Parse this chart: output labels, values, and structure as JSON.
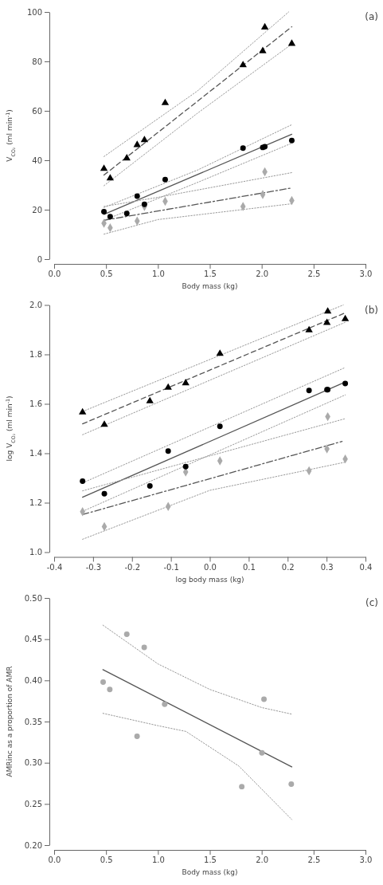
{
  "chart_data": [
    {
      "type": "scatter",
      "title": "(a)",
      "xlabel": "Body mass (kg)",
      "ylabel": "V$_{CO₂}$ (ml min$^{-1}$)",
      "xlim": [
        0,
        3
      ],
      "xticks": [
        {
          "value": 0,
          "label": "0.0"
        },
        {
          "value": 0.5,
          "label": "0.5"
        },
        {
          "value": 1,
          "label": "1.0"
        },
        {
          "value": 1.5,
          "label": "1.5"
        },
        {
          "value": 2,
          "label": "2.0"
        },
        {
          "value": 2.5,
          "label": "2.5"
        },
        {
          "value": 3,
          "label": "3.0"
        }
      ],
      "ylim": [
        0,
        100
      ],
      "yticks": [
        0,
        20,
        40,
        60,
        80,
        100
      ],
      "series": [
        {
          "type": "line",
          "color": "#999999",
          "line_style": "dotted",
          "x": [
            0.48,
            1.38,
            2.26
          ],
          "values": [
            41.5,
            68,
            100
          ]
        },
        {
          "type": "line",
          "color": "#999999",
          "line_style": "dotted",
          "x": [
            0.48,
            1.38,
            2.29
          ],
          "values": [
            29.7,
            59,
            87
          ]
        },
        {
          "type": "line",
          "color": "#555555",
          "line_style": "dashed",
          "x": [
            0.48,
            2.29
          ],
          "values": [
            34,
            94
          ]
        },
        {
          "type": "scatter",
          "color": "#000000",
          "marker": "triangle",
          "x": [
            0.48,
            0.54,
            0.7,
            0.8,
            0.87,
            1.07,
            1.82,
            2.01,
            2.03,
            2.29
          ],
          "values": [
            36.6,
            32.7,
            40.8,
            46.2,
            48.2,
            63.2,
            78.5,
            84.2,
            93.8,
            87.2
          ]
        },
        {
          "type": "line",
          "color": "#999999",
          "line_style": "dotted",
          "x": [
            0.48,
            1.38,
            2.29
          ],
          "values": [
            20.9,
            36,
            54.4
          ]
        },
        {
          "type": "line",
          "color": "#999999",
          "line_style": "dotted",
          "x": [
            0.48,
            1.38,
            2.29
          ],
          "values": [
            15.7,
            31,
            46.9
          ]
        },
        {
          "type": "line",
          "color": "#555555",
          "line_style": "solid",
          "x": [
            0.48,
            2.29
          ],
          "values": [
            18.1,
            50.5
          ]
        },
        {
          "type": "scatter",
          "color": "#000000",
          "marker": "circle",
          "x": [
            0.48,
            0.54,
            0.7,
            0.8,
            0.87,
            1.07,
            1.82,
            2.01,
            2.03,
            2.29
          ],
          "values": [
            19.2,
            17.2,
            18.5,
            25.5,
            22.2,
            32.2,
            44.9,
            45.2,
            45.5,
            48
          ]
        },
        {
          "type": "line",
          "color": "#999999",
          "line_style": "dotted",
          "x": [
            0.48,
            1.0,
            2.29
          ],
          "values": [
            21.3,
            25,
            35
          ]
        },
        {
          "type": "line",
          "color": "#999999",
          "line_style": "dotted",
          "x": [
            0.48,
            1.0,
            2.29
          ],
          "values": [
            10.1,
            16,
            22.4
          ]
        },
        {
          "type": "line",
          "color": "#555555",
          "line_style": "dashdot",
          "x": [
            0.48,
            2.29
          ],
          "values": [
            15.7,
            28.8
          ]
        },
        {
          "type": "scatter",
          "color": "#aaaaaa",
          "marker": "diamond",
          "x": [
            0.48,
            0.54,
            0.8,
            0.87,
            1.07,
            1.82,
            2.01,
            2.03,
            2.29
          ],
          "values": [
            14.5,
            12.7,
            15.4,
            21.3,
            23.4,
            21.3,
            26.1,
            35.3,
            23.7
          ]
        }
      ]
    },
    {
      "type": "scatter",
      "title": "(b)",
      "xlabel": "log body mass (kg)",
      "ylabel": "log V$_{CO₂}$ (ml min$^{-1}$)",
      "xlim": [
        -0.4,
        0.4
      ],
      "xticks": [
        {
          "value": -0.4,
          "label": "-0.4"
        },
        {
          "value": -0.3,
          "label": "-0.3"
        },
        {
          "value": -0.2,
          "label": "-0.2"
        },
        {
          "value": -0.1,
          "label": "-0.1"
        },
        {
          "value": 0,
          "label": "0.0"
        },
        {
          "value": 0.1,
          "label": "0.1"
        },
        {
          "value": 0.2,
          "label": "0.2"
        },
        {
          "value": 0.3,
          "label": "0.3"
        },
        {
          "value": 0.4,
          "label": "0.4"
        }
      ],
      "ylim": [
        1,
        2
      ],
      "yticks": [
        {
          "value": 1,
          "label": "1.0"
        },
        {
          "value": 1.2,
          "label": "1.2"
        },
        {
          "value": 1.4,
          "label": "1.4"
        },
        {
          "value": 1.6,
          "label": "1.6"
        },
        {
          "value": 1.8,
          "label": "1.8"
        },
        {
          "value": 2,
          "label": "2.0"
        }
      ],
      "series": [
        {
          "type": "line",
          "color": "#999999",
          "line_style": "dotted",
          "x": [
            -0.327,
            0.343
          ],
          "values": [
            1.569,
            2.0
          ]
        },
        {
          "type": "line",
          "color": "#999999",
          "line_style": "dotted",
          "x": [
            -0.327,
            0.348
          ],
          "values": [
            1.475,
            1.93
          ]
        },
        {
          "type": "line",
          "color": "#555555",
          "line_style": "dashed",
          "x": [
            -0.327,
            0.348
          ],
          "values": [
            1.519,
            1.968
          ]
        },
        {
          "type": "scatter",
          "color": "#000000",
          "marker": "triangle",
          "x": [
            -0.327,
            -0.271,
            -0.154,
            -0.107,
            -0.062,
            0.026,
            0.255,
            0.301,
            0.303,
            0.348
          ],
          "values": [
            1.566,
            1.516,
            1.611,
            1.666,
            1.684,
            1.803,
            1.898,
            1.928,
            1.974,
            1.943
          ]
        },
        {
          "type": "line",
          "color": "#999999",
          "line_style": "dotted",
          "x": [
            -0.327,
            0.348
          ],
          "values": [
            1.28,
            1.747
          ]
        },
        {
          "type": "line",
          "color": "#999999",
          "line_style": "dotted",
          "x": [
            -0.327,
            0.348
          ],
          "values": [
            1.165,
            1.636
          ]
        },
        {
          "type": "line",
          "color": "#555555",
          "line_style": "solid",
          "x": [
            -0.327,
            0.348
          ],
          "values": [
            1.222,
            1.688
          ]
        },
        {
          "type": "scatter",
          "color": "#000000",
          "marker": "circle",
          "x": [
            -0.327,
            -0.271,
            -0.154,
            -0.107,
            -0.062,
            0.026,
            0.255,
            0.301,
            0.303,
            0.348
          ],
          "values": [
            1.287,
            1.236,
            1.268,
            1.409,
            1.346,
            1.509,
            1.654,
            1.657,
            1.657,
            1.682
          ]
        },
        {
          "type": "line",
          "color": "#999999",
          "line_style": "dotted",
          "x": [
            -0.327,
            0.348
          ],
          "values": [
            1.248,
            1.54
          ]
        },
        {
          "type": "line",
          "color": "#999999",
          "line_style": "dotted",
          "x": [
            -0.327,
            0.0,
            0.348
          ],
          "values": [
            1.052,
            1.25,
            1.364
          ]
        },
        {
          "type": "line",
          "color": "#555555",
          "line_style": "dashdot",
          "x": [
            -0.327,
            0.34
          ],
          "values": [
            1.152,
            1.448
          ]
        },
        {
          "type": "scatter",
          "color": "#aaaaaa",
          "marker": "diamond",
          "x": [
            -0.327,
            -0.271,
            -0.107,
            -0.062,
            0.026,
            0.255,
            0.301,
            0.303,
            0.348
          ],
          "values": [
            1.164,
            1.103,
            1.185,
            1.324,
            1.369,
            1.329,
            1.418,
            1.548,
            1.377
          ]
        }
      ]
    },
    {
      "type": "scatter",
      "title": "(c)",
      "xlabel": "Body mass (kg)",
      "ylabel": "AMRinc as a proportion of AMR",
      "xlim": [
        0,
        3
      ],
      "xticks": [
        {
          "value": 0,
          "label": "0.0"
        },
        {
          "value": 0.5,
          "label": "0.5"
        },
        {
          "value": 1,
          "label": "1.0"
        },
        {
          "value": 1.5,
          "label": "1.5"
        },
        {
          "value": 2,
          "label": "2.0"
        },
        {
          "value": 2.5,
          "label": "2.5"
        },
        {
          "value": 3,
          "label": "3.0"
        }
      ],
      "ylim": [
        0.2,
        0.5
      ],
      "yticks": [
        {
          "value": 0.2,
          "label": "0.20"
        },
        {
          "value": 0.25,
          "label": "0.25"
        },
        {
          "value": 0.3,
          "label": "0.30"
        },
        {
          "value": 0.35,
          "label": "0.35"
        },
        {
          "value": 0.4,
          "label": "0.40"
        },
        {
          "value": 0.45,
          "label": "0.45"
        },
        {
          "value": 0.5,
          "label": "0.50"
        }
      ],
      "series": [
        {
          "type": "line",
          "color": "#999999",
          "line_style": "dotted",
          "x": [
            0.47,
            1.0,
            1.5,
            2.0,
            2.29
          ],
          "values": [
            0.467,
            0.42,
            0.389,
            0.367,
            0.359
          ]
        },
        {
          "type": "line",
          "color": "#999999",
          "line_style": "dotted",
          "x": [
            0.47,
            1.0,
            1.27,
            1.78,
            2.29
          ],
          "values": [
            0.36,
            0.345,
            0.338,
            0.296,
            0.231
          ]
        },
        {
          "type": "line",
          "color": "#555555",
          "line_style": "solid",
          "x": [
            0.47,
            2.29
          ],
          "values": [
            0.413,
            0.295
          ]
        },
        {
          "type": "scatter",
          "color": "#aaaaaa",
          "marker": "circle",
          "x": [
            0.472,
            0.536,
            0.7,
            0.868,
            0.799,
            1.065,
            1.808,
            2.002,
            2.022,
            2.285
          ],
          "values": [
            0.398,
            0.389,
            0.456,
            0.44,
            0.332,
            0.371,
            0.271,
            0.312,
            0.377,
            0.274
          ]
        }
      ]
    }
  ]
}
